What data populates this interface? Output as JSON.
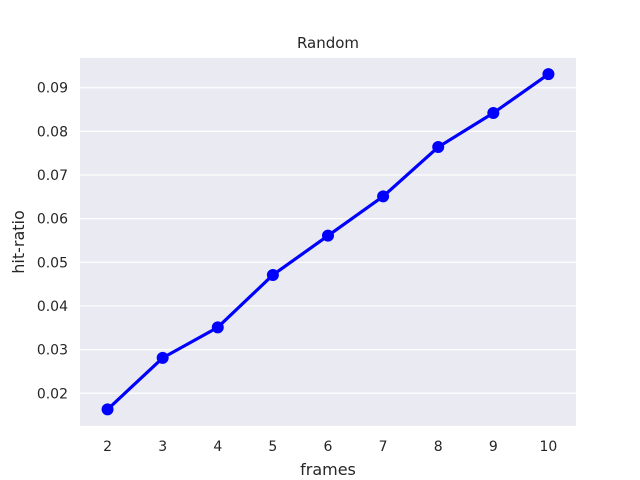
{
  "chart_data": {
    "type": "line",
    "title": "Random",
    "xlabel": "frames",
    "ylabel": "hit-ratio",
    "x": [
      2,
      3,
      4,
      5,
      6,
      7,
      8,
      9,
      10
    ],
    "series": [
      {
        "values": [
          0.0163,
          0.0281,
          0.0351,
          0.0471,
          0.0561,
          0.0651,
          0.0764,
          0.0842,
          0.0931
        ]
      }
    ],
    "yticks": [
      0.02,
      0.03,
      0.04,
      0.05,
      0.06,
      0.07,
      0.08,
      0.09
    ],
    "ytick_labels": [
      "0.02",
      "0.03",
      "0.04",
      "0.05",
      "0.06",
      "0.07",
      "0.08",
      "0.09"
    ],
    "xtick_labels": [
      "2",
      "3",
      "4",
      "5",
      "6",
      "7",
      "8",
      "9",
      "10"
    ],
    "ylim": [
      0.0125,
      0.0968
    ],
    "grid": true,
    "colors": {
      "series": "#0000ff",
      "background": "#eaeaf2",
      "grid": "#ffffff"
    }
  }
}
